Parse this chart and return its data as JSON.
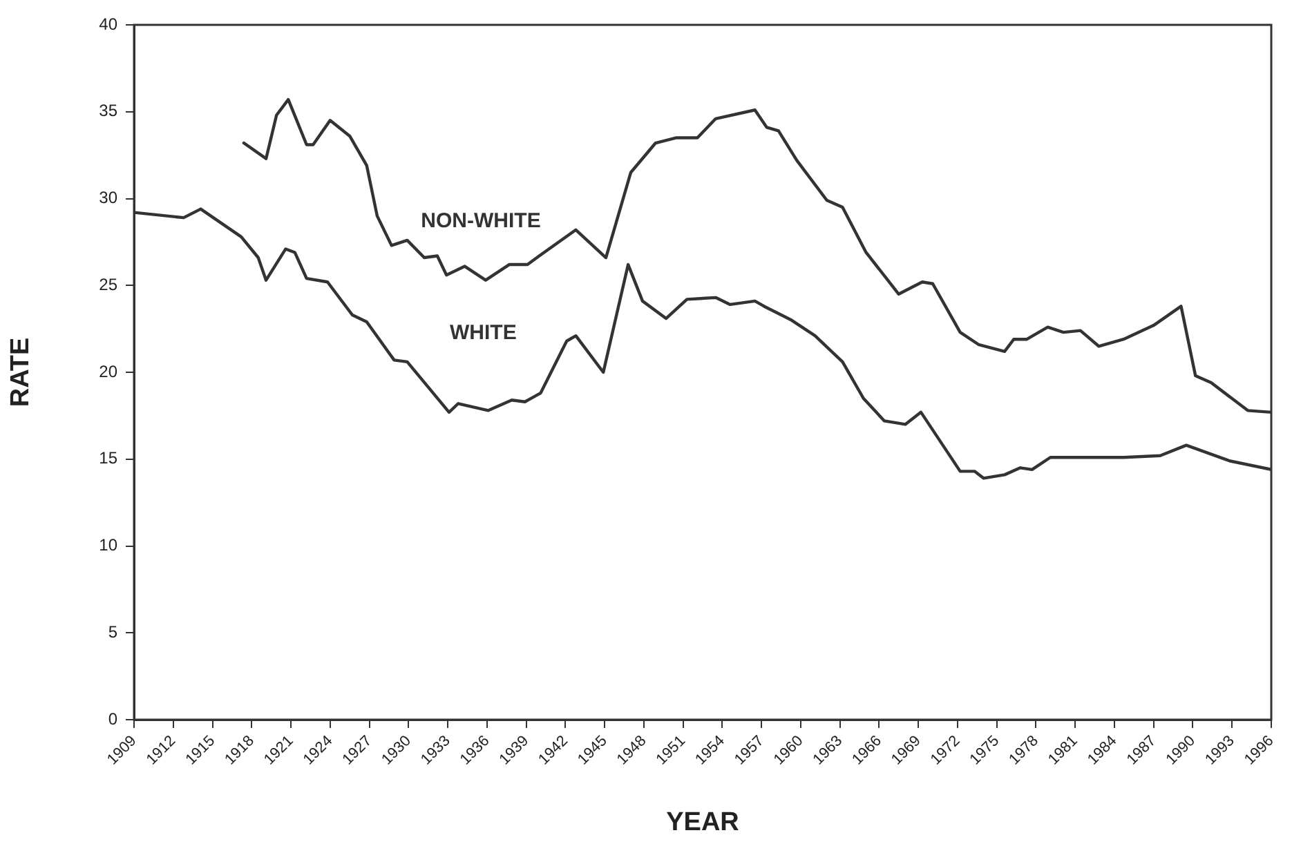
{
  "chart_data": {
    "type": "line",
    "xlabel": "YEAR",
    "ylabel": "RATE",
    "xlim": [
      1909,
      1996
    ],
    "xticks": [
      1909,
      1912,
      1915,
      1918,
      1921,
      1924,
      1927,
      1930,
      1933,
      1936,
      1939,
      1942,
      1945,
      1948,
      1951,
      1954,
      1957,
      1960,
      1963,
      1966,
      1969,
      1972,
      1975,
      1978,
      1981,
      1984,
      1987,
      1990,
      1993,
      1996
    ],
    "ylim": [
      0,
      40
    ],
    "yticks": [
      0,
      5,
      10,
      15,
      20,
      25,
      30,
      35,
      40
    ],
    "grid": false,
    "legend": false,
    "marker": "none",
    "line_style": "solid",
    "series": [
      {
        "name": "NON-WHITE",
        "color": "#333333",
        "x": [
          1917.4,
          1919.1,
          1919.9,
          1920.8,
          1922.2,
          1922.7,
          1924,
          1925.5,
          1926.8,
          1927.6,
          1928.7,
          1929.9,
          1931.2,
          1932.2,
          1932.9,
          1934.3,
          1935.9,
          1937.7,
          1939.1,
          1940,
          1942.8,
          1945.1,
          1947,
          1948.9,
          1950.5,
          1952.1,
          1953.5,
          1956.5,
          1957.4,
          1958.3,
          1959.7,
          1962,
          1963.2,
          1965,
          1967.5,
          1969.3,
          1970.1,
          1972.2,
          1973.6,
          1975.6,
          1976.3,
          1977.3,
          1978.9,
          1980.1,
          1981.4,
          1982.8,
          1984.7,
          1987,
          1989.1,
          1990.2,
          1991.4,
          1994.2,
          1996
        ],
        "values": [
          33.2,
          32.3,
          34.8,
          35.7,
          33.1,
          33.1,
          34.5,
          33.6,
          31.9,
          29.0,
          27.3,
          27.6,
          26.6,
          26.7,
          25.6,
          26.1,
          25.3,
          26.2,
          26.2,
          26.7,
          28.2,
          26.6,
          31.5,
          33.2,
          33.5,
          33.5,
          34.6,
          35.1,
          34.1,
          33.9,
          32.2,
          29.9,
          29.5,
          26.9,
          24.5,
          25.2,
          25.1,
          22.3,
          21.6,
          21.2,
          21.9,
          21.9,
          22.6,
          22.3,
          22.4,
          21.5,
          21.9,
          22.7,
          23.8,
          19.8,
          19.4,
          17.8,
          17.7
        ]
      },
      {
        "name": "WHITE",
        "color": "#333333",
        "x": [
          1909,
          1912.8,
          1914.1,
          1917.2,
          1918.5,
          1919.1,
          1920.6,
          1921.3,
          1922.2,
          1923.8,
          1925.7,
          1926.8,
          1928.9,
          1929.9,
          1933.1,
          1933.8,
          1936.1,
          1937.9,
          1938.9,
          1940.1,
          1942.1,
          1942.8,
          1944.9,
          1946.8,
          1947.9,
          1949.7,
          1951.3,
          1953.5,
          1954.6,
          1956.5,
          1957.2,
          1959.3,
          1961.1,
          1963.2,
          1964.8,
          1966.4,
          1968,
          1969.2,
          1972.2,
          1973.3,
          1974,
          1975.6,
          1976.8,
          1977.7,
          1979.1,
          1984.7,
          1987.5,
          1989.5,
          1992.8,
          1996
        ],
        "values": [
          29.2,
          28.9,
          29.4,
          27.8,
          26.6,
          25.3,
          27.1,
          26.9,
          25.4,
          25.2,
          23.3,
          22.9,
          20.7,
          20.6,
          17.7,
          18.2,
          17.8,
          18.4,
          18.3,
          18.8,
          21.8,
          22.1,
          20.0,
          26.2,
          24.1,
          23.1,
          24.2,
          24.3,
          23.9,
          24.1,
          23.8,
          23.0,
          22.1,
          20.6,
          18.5,
          17.2,
          17.0,
          17.7,
          14.3,
          14.3,
          13.9,
          14.1,
          14.5,
          14.4,
          15.1,
          15.1,
          15.2,
          15.8,
          14.9,
          14.4
        ]
      }
    ]
  }
}
